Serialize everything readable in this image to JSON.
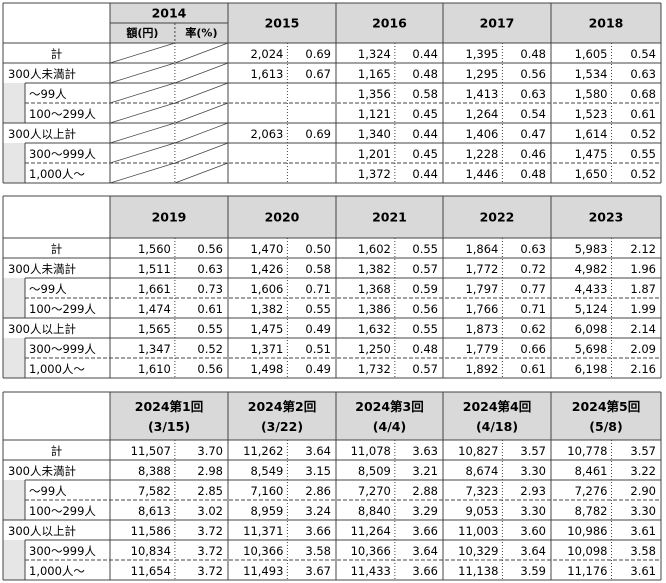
{
  "tables": [
    {
      "columns": [
        {
          "label": "2014",
          "sub": [
            "額(円)",
            "率(%)"
          ]
        },
        {
          "label": "2015"
        },
        {
          "label": "2016"
        },
        {
          "label": "2017"
        },
        {
          "label": "2018"
        }
      ],
      "groups": [
        {
          "label": "計",
          "values": [
            null,
            [
              "2,024",
              "0.69"
            ],
            [
              "1,324",
              "0.44"
            ],
            [
              "1,395",
              "0.48"
            ],
            [
              "1,605",
              "0.54"
            ]
          ]
        },
        {
          "label": "300人未満計",
          "values": [
            null,
            [
              "1,613",
              "0.67"
            ],
            [
              "1,165",
              "0.48"
            ],
            [
              "1,295",
              "0.56"
            ],
            [
              "1,534",
              "0.63"
            ]
          ],
          "children": [
            {
              "label": "～99人",
              "values": [
                null,
                null,
                [
                  "1,356",
                  "0.58"
                ],
                [
                  "1,413",
                  "0.63"
                ],
                [
                  "1,580",
                  "0.68"
                ]
              ]
            },
            {
              "label": "100～299人",
              "values": [
                null,
                null,
                [
                  "1,121",
                  "0.45"
                ],
                [
                  "1,264",
                  "0.54"
                ],
                [
                  "1,523",
                  "0.61"
                ]
              ]
            }
          ]
        },
        {
          "label": "300人以上計",
          "values": [
            null,
            [
              "2,063",
              "0.69"
            ],
            [
              "1,340",
              "0.44"
            ],
            [
              "1,406",
              "0.47"
            ],
            [
              "1,614",
              "0.52"
            ]
          ],
          "children": [
            {
              "label": "300～999人",
              "values": [
                null,
                null,
                [
                  "1,201",
                  "0.45"
                ],
                [
                  "1,228",
                  "0.46"
                ],
                [
                  "1,475",
                  "0.55"
                ]
              ]
            },
            {
              "label": "1,000人～",
              "values": [
                null,
                null,
                [
                  "1,372",
                  "0.44"
                ],
                [
                  "1,446",
                  "0.48"
                ],
                [
                  "1,650",
                  "0.52"
                ]
              ]
            }
          ]
        }
      ]
    },
    {
      "columns": [
        {
          "label": "2019"
        },
        {
          "label": "2020"
        },
        {
          "label": "2021"
        },
        {
          "label": "2022"
        },
        {
          "label": "2023"
        }
      ],
      "groups": [
        {
          "label": "計",
          "values": [
            [
              "1,560",
              "0.56"
            ],
            [
              "1,470",
              "0.50"
            ],
            [
              "1,602",
              "0.55"
            ],
            [
              "1,864",
              "0.63"
            ],
            [
              "5,983",
              "2.12"
            ]
          ]
        },
        {
          "label": "300人未満計",
          "values": [
            [
              "1,511",
              "0.63"
            ],
            [
              "1,426",
              "0.58"
            ],
            [
              "1,382",
              "0.57"
            ],
            [
              "1,772",
              "0.72"
            ],
            [
              "4,982",
              "1.96"
            ]
          ],
          "children": [
            {
              "label": "～99人",
              "values": [
                [
                  "1,661",
                  "0.73"
                ],
                [
                  "1,606",
                  "0.71"
                ],
                [
                  "1,368",
                  "0.59"
                ],
                [
                  "1,797",
                  "0.77"
                ],
                [
                  "4,433",
                  "1.87"
                ]
              ]
            },
            {
              "label": "100～299人",
              "values": [
                [
                  "1,474",
                  "0.61"
                ],
                [
                  "1,382",
                  "0.55"
                ],
                [
                  "1,386",
                  "0.56"
                ],
                [
                  "1,766",
                  "0.71"
                ],
                [
                  "5,124",
                  "1.99"
                ]
              ]
            }
          ]
        },
        {
          "label": "300人以上計",
          "values": [
            [
              "1,565",
              "0.55"
            ],
            [
              "1,475",
              "0.49"
            ],
            [
              "1,632",
              "0.55"
            ],
            [
              "1,873",
              "0.62"
            ],
            [
              "6,098",
              "2.14"
            ]
          ],
          "children": [
            {
              "label": "300～999人",
              "values": [
                [
                  "1,347",
                  "0.52"
                ],
                [
                  "1,371",
                  "0.51"
                ],
                [
                  "1,250",
                  "0.48"
                ],
                [
                  "1,779",
                  "0.66"
                ],
                [
                  "5,698",
                  "2.09"
                ]
              ]
            },
            {
              "label": "1,000人～",
              "values": [
                [
                  "1,610",
                  "0.56"
                ],
                [
                  "1,498",
                  "0.49"
                ],
                [
                  "1,732",
                  "0.57"
                ],
                [
                  "1,892",
                  "0.61"
                ],
                [
                  "6,198",
                  "2.16"
                ]
              ]
            }
          ]
        }
      ]
    },
    {
      "columns": [
        {
          "label": "2024第1回",
          "date": "(3/15)"
        },
        {
          "label": "2024第2回",
          "date": "(3/22)"
        },
        {
          "label": "2024第3回",
          "date": "(4/4)"
        },
        {
          "label": "2024第4回",
          "date": "(4/18)"
        },
        {
          "label": "2024第5回",
          "date": "(5/8)"
        }
      ],
      "groups": [
        {
          "label": "計",
          "values": [
            [
              "11,507",
              "3.70"
            ],
            [
              "11,262",
              "3.64"
            ],
            [
              "11,078",
              "3.63"
            ],
            [
              "10,827",
              "3.57"
            ],
            [
              "10,778",
              "3.57"
            ]
          ]
        },
        {
          "label": "300人未満計",
          "values": [
            [
              "8,388",
              "2.98"
            ],
            [
              "8,549",
              "3.15"
            ],
            [
              "8,509",
              "3.21"
            ],
            [
              "8,674",
              "3.30"
            ],
            [
              "8,461",
              "3.22"
            ]
          ],
          "children": [
            {
              "label": "～99人",
              "values": [
                [
                  "7,582",
                  "2.85"
                ],
                [
                  "7,160",
                  "2.86"
                ],
                [
                  "7,270",
                  "2.88"
                ],
                [
                  "7,323",
                  "2.93"
                ],
                [
                  "7,276",
                  "2.90"
                ]
              ]
            },
            {
              "label": "100～299人",
              "values": [
                [
                  "8,613",
                  "3.02"
                ],
                [
                  "8,959",
                  "3.24"
                ],
                [
                  "8,840",
                  "3.29"
                ],
                [
                  "9,053",
                  "3.30"
                ],
                [
                  "8,782",
                  "3.30"
                ]
              ]
            }
          ]
        },
        {
          "label": "300人以上計",
          "values": [
            [
              "11,586",
              "3.72"
            ],
            [
              "11,371",
              "3.66"
            ],
            [
              "11,264",
              "3.66"
            ],
            [
              "11,003",
              "3.60"
            ],
            [
              "10,986",
              "3.61"
            ]
          ],
          "children": [
            {
              "label": "300～999人",
              "values": [
                [
                  "10,834",
                  "3.72"
                ],
                [
                  "10,366",
                  "3.58"
                ],
                [
                  "10,366",
                  "3.64"
                ],
                [
                  "10,329",
                  "3.64"
                ],
                [
                  "10,098",
                  "3.58"
                ]
              ]
            },
            {
              "label": "1,000人～",
              "values": [
                [
                  "11,654",
                  "3.72"
                ],
                [
                  "11,493",
                  "3.67"
                ],
                [
                  "11,433",
                  "3.66"
                ],
                [
                  "11,138",
                  "3.59"
                ],
                [
                  "11,176",
                  "3.61"
                ]
              ]
            }
          ]
        }
      ]
    }
  ]
}
